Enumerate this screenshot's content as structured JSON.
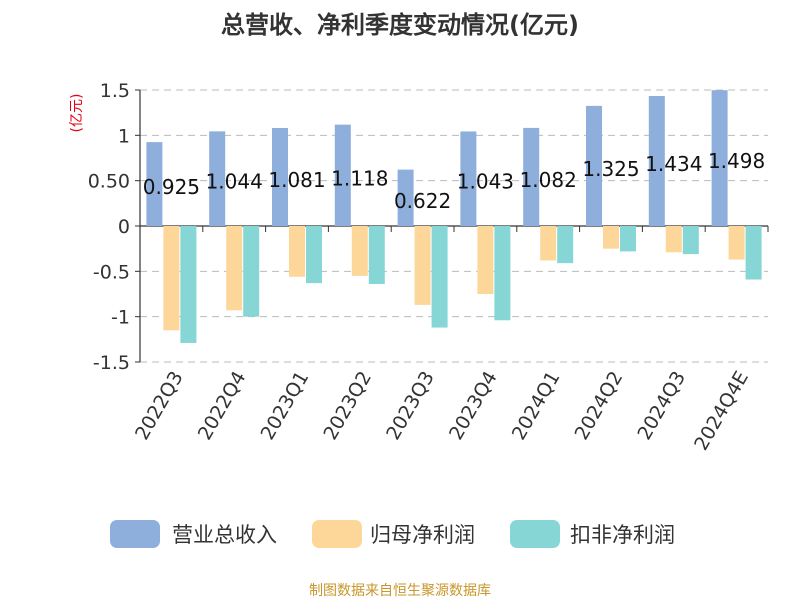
{
  "chart_data": {
    "type": "bar",
    "title": "总营收、净利季度变动情况(亿元)",
    "ylabel": "(亿元)",
    "ylim": [
      -1.5,
      1.5
    ],
    "yticks": [
      1.5,
      1,
      0.5,
      0,
      -0.5,
      -1,
      -1.5
    ],
    "ytick_labels": [
      "1.5",
      "1",
      "0.50",
      "0",
      "-0.5",
      "-1",
      "-1.5"
    ],
    "grid": true,
    "legend_position": "bottom",
    "categories": [
      "2022Q3",
      "2022Q4",
      "2023Q1",
      "2023Q2",
      "2023Q3",
      "2023Q4",
      "2024Q1",
      "2024Q2",
      "2024Q3",
      "2024Q4E"
    ],
    "series": [
      {
        "name": "营业总收入",
        "color": "#8eaedc",
        "values": [
          0.925,
          1.044,
          1.081,
          1.118,
          0.622,
          1.043,
          1.082,
          1.325,
          1.434,
          1.498
        ],
        "labels": [
          "0.925",
          "1.044",
          "1.081",
          "1.118",
          "0.622",
          "1.043",
          "1.082",
          "1.325",
          "1.434",
          "1.498"
        ]
      },
      {
        "name": "归母净利润",
        "color": "#fdd699",
        "values": [
          -1.15,
          -0.93,
          -0.56,
          -0.55,
          -0.87,
          -0.75,
          -0.38,
          -0.25,
          -0.29,
          -0.37
        ]
      },
      {
        "name": "扣非净利润",
        "color": "#87d6d6",
        "values": [
          -1.29,
          -1.0,
          -0.63,
          -0.64,
          -1.12,
          -1.04,
          -0.41,
          -0.28,
          -0.31,
          -0.59
        ]
      }
    ]
  },
  "source": "制图数据来自恒生聚源数据库"
}
